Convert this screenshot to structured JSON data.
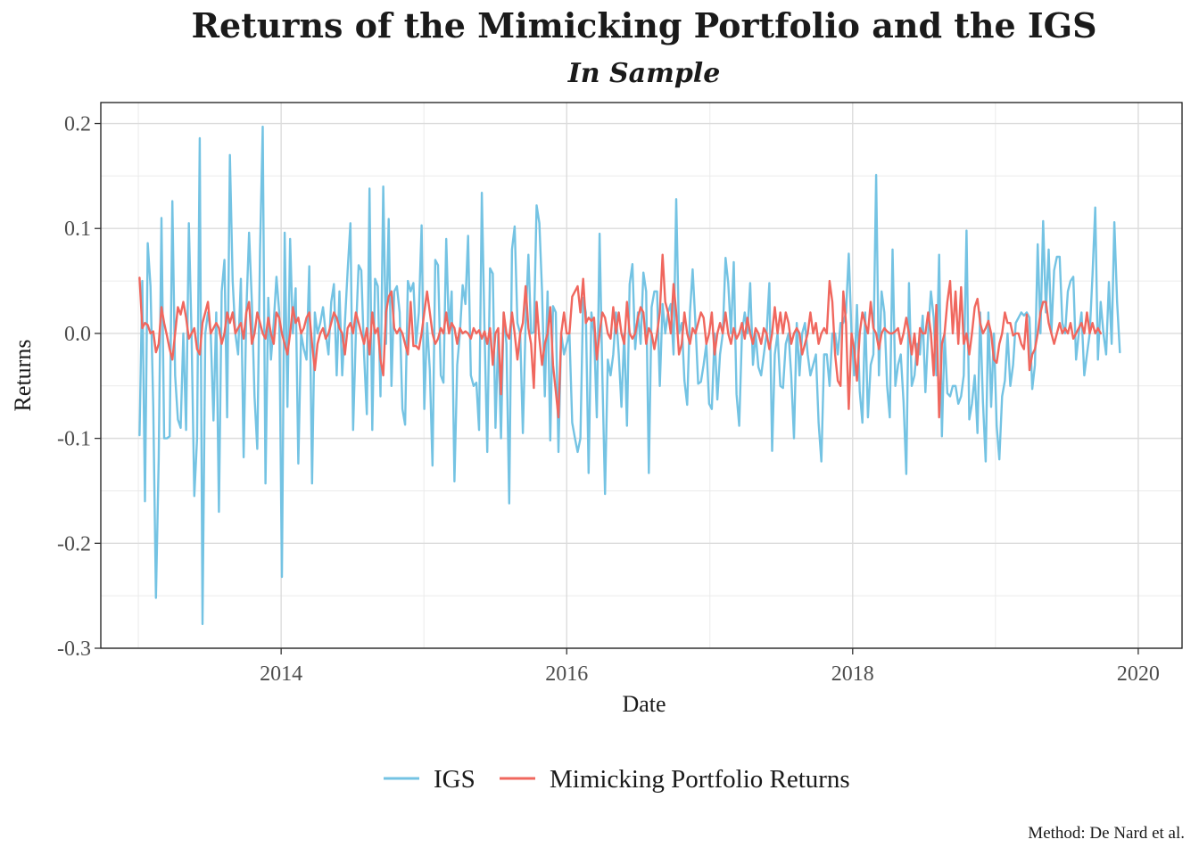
{
  "chart_data": {
    "type": "line",
    "title": "Returns of the Mimicking Portfolio and the IGS",
    "subtitle": "In Sample",
    "xlabel": "Date",
    "ylabel": "Returns",
    "caption": "Method: De Nard et al.",
    "xlim": [
      "2012-09-27",
      "2020-04-22"
    ],
    "ylim": [
      -0.3,
      0.22
    ],
    "x_ticks": [
      "2014",
      "2016",
      "2018",
      "2020"
    ],
    "y_ticks": [
      "0.2",
      "0.1",
      "0.0",
      "-0.1",
      "-0.2",
      "-0.3"
    ],
    "grid": true,
    "legend_position": "bottom",
    "frequency": "weekly",
    "start_date": "2013-01-04",
    "series": [
      {
        "name": "IGS",
        "color": "#74c3e3",
        "values": [
          -0.097,
          0.05,
          -0.16,
          0.086,
          0.045,
          -0.07,
          -0.252,
          -0.12,
          0.11,
          -0.1,
          -0.1,
          -0.098,
          0.126,
          -0.04,
          -0.082,
          -0.09,
          0.0,
          -0.092,
          0.105,
          0.0,
          -0.155,
          -0.1,
          0.186,
          -0.277,
          0.0,
          0.02,
          0.0,
          -0.083,
          0.02,
          -0.17,
          0.04,
          0.07,
          -0.08,
          0.17,
          0.05,
          0.0,
          -0.02,
          0.052,
          -0.118,
          0.02,
          0.096,
          0.03,
          -0.06,
          -0.11,
          0.08,
          0.197,
          -0.143,
          0.034,
          -0.025,
          0.01,
          0.054,
          0.02,
          -0.232,
          0.096,
          -0.07,
          0.09,
          0.0,
          0.043,
          -0.124,
          0.0,
          -0.015,
          -0.025,
          0.064,
          -0.143,
          0.02,
          0.0,
          0.01,
          0.025,
          0.0,
          -0.02,
          0.03,
          0.047,
          -0.04,
          0.04,
          -0.04,
          0.01,
          0.06,
          0.105,
          -0.092,
          0.0,
          0.065,
          0.06,
          -0.02,
          -0.077,
          0.138,
          -0.092,
          0.052,
          0.045,
          -0.06,
          0.14,
          -0.01,
          0.109,
          -0.05,
          0.04,
          0.045,
          0.02,
          -0.072,
          -0.087,
          0.05,
          0.04,
          0.048,
          -0.01,
          0.02,
          0.103,
          -0.072,
          0.01,
          -0.035,
          -0.126,
          0.07,
          0.065,
          -0.04,
          -0.047,
          0.09,
          0.0,
          0.04,
          -0.141,
          -0.03,
          0.0,
          0.046,
          0.028,
          0.093,
          -0.04,
          -0.05,
          -0.047,
          -0.092,
          0.134,
          0.0,
          -0.113,
          0.062,
          0.057,
          -0.09,
          0.0,
          -0.1,
          0.02,
          -0.01,
          -0.162,
          0.08,
          0.102,
          0.01,
          0.0,
          -0.095,
          0.01,
          0.075,
          0.0,
          0.001,
          0.122,
          0.105,
          0.04,
          -0.06,
          0.04,
          -0.102,
          0.026,
          0.02,
          -0.113,
          0.0,
          -0.02,
          -0.01,
          0.0,
          -0.085,
          -0.1,
          -0.113,
          -0.1,
          0.034,
          0.02,
          -0.133,
          0.02,
          0.0,
          -0.08,
          0.095,
          -0.04,
          -0.153,
          -0.025,
          -0.04,
          -0.02,
          0.02,
          -0.02,
          -0.07,
          0.0,
          -0.088,
          0.047,
          0.066,
          -0.015,
          0.02,
          -0.01,
          0.058,
          0.04,
          -0.133,
          0.025,
          0.04,
          0.04,
          -0.05,
          0.028,
          0.0,
          0.02,
          0.028,
          -0.02,
          0.128,
          0.0,
          0.01,
          -0.045,
          -0.068,
          0.02,
          0.061,
          0.01,
          -0.048,
          -0.046,
          -0.03,
          -0.01,
          -0.067,
          -0.072,
          0.0,
          -0.063,
          -0.02,
          0.0,
          0.072,
          0.048,
          0.0,
          0.068,
          -0.058,
          -0.088,
          0.0,
          0.02,
          0.0,
          0.048,
          -0.03,
          0.0,
          -0.032,
          -0.04,
          -0.02,
          0.0,
          0.048,
          -0.112,
          -0.02,
          0.0,
          -0.05,
          -0.052,
          -0.01,
          0.0,
          -0.04,
          -0.1,
          0.01,
          -0.04,
          0.0,
          0.01,
          -0.02,
          -0.04,
          -0.03,
          -0.02,
          -0.085,
          -0.122,
          -0.02,
          -0.02,
          -0.05,
          0.0,
          0.0,
          -0.02,
          0.01,
          0.01,
          0.02,
          0.076,
          0.0,
          -0.04,
          0.027,
          -0.055,
          -0.085,
          0.02,
          -0.08,
          -0.03,
          -0.02,
          0.151,
          -0.04,
          0.04,
          0.02,
          -0.05,
          -0.08,
          0.08,
          -0.05,
          -0.03,
          -0.02,
          -0.065,
          -0.134,
          0.048,
          -0.05,
          -0.04,
          -0.01,
          -0.02,
          0.017,
          -0.056,
          0.0,
          0.04,
          0.015,
          -0.04,
          0.075,
          -0.098,
          0.0,
          -0.057,
          -0.06,
          -0.05,
          -0.05,
          -0.067,
          -0.06,
          -0.04,
          0.098,
          -0.082,
          -0.067,
          -0.04,
          -0.095,
          0.02,
          -0.065,
          -0.122,
          0.02,
          -0.07,
          0.0,
          -0.088,
          -0.12,
          -0.06,
          -0.045,
          0.0,
          -0.05,
          -0.03,
          0.01,
          0.015,
          0.02,
          0.017,
          0.02,
          0.015,
          -0.053,
          -0.03,
          0.085,
          0.0,
          0.107,
          0.02,
          0.08,
          0.0,
          0.06,
          0.073,
          0.073,
          0.01,
          0.0,
          0.04,
          0.05,
          0.054,
          -0.025,
          0.0,
          0.02,
          -0.04,
          -0.02,
          0.0,
          0.055,
          0.12,
          -0.025,
          0.03,
          0.0,
          -0.02,
          0.049,
          -0.01,
          0.106,
          0.03,
          -0.018
        ]
      },
      {
        "name": "Mimicking Portfolio Returns",
        "color": "#f0675e",
        "values": [
          0.053,
          0.005,
          0.01,
          0.008,
          0.0,
          0.002,
          -0.018,
          -0.01,
          0.025,
          0.01,
          -0.002,
          -0.015,
          -0.025,
          0.0,
          0.025,
          0.018,
          0.03,
          0.015,
          -0.005,
          0.0,
          0.005,
          -0.015,
          -0.02,
          0.01,
          0.02,
          0.03,
          0.0,
          0.005,
          0.01,
          0.005,
          -0.01,
          0.0,
          0.02,
          0.01,
          0.02,
          0.0,
          0.005,
          0.01,
          -0.005,
          0.02,
          0.03,
          -0.01,
          0.0,
          0.02,
          0.01,
          0.0,
          -0.005,
          0.015,
          0.0,
          -0.01,
          0.02,
          0.015,
          0.0,
          -0.01,
          -0.02,
          0.0,
          0.025,
          0.01,
          0.015,
          0.0,
          0.005,
          0.015,
          0.02,
          -0.01,
          -0.035,
          -0.01,
          0.0,
          0.005,
          -0.005,
          0.0,
          0.01,
          0.02,
          0.015,
          0.005,
          0.0,
          -0.02,
          0.005,
          0.01,
          0.0,
          0.02,
          0.01,
          0.0,
          -0.01,
          0.005,
          -0.02,
          0.02,
          0.0,
          0.005,
          -0.025,
          -0.04,
          0.02,
          0.035,
          0.04,
          0.005,
          0.0,
          0.005,
          0.0,
          -0.01,
          -0.02,
          0.03,
          -0.012,
          -0.012,
          -0.015,
          0.0,
          0.02,
          0.04,
          0.02,
          0.0,
          -0.01,
          -0.005,
          0.005,
          0.0,
          0.02,
          0.0,
          0.01,
          0.005,
          -0.01,
          0.005,
          0.0,
          0.002,
          0.0,
          -0.005,
          0.005,
          0.0,
          0.003,
          -0.005,
          0.002,
          -0.01,
          0.005,
          -0.03,
          0.0,
          0.005,
          -0.058,
          0.02,
          0.0,
          -0.005,
          0.02,
          0.0,
          -0.025,
          0.0,
          0.01,
          0.045,
          0.005,
          -0.01,
          -0.052,
          0.03,
          -0.005,
          -0.03,
          -0.01,
          0.0,
          0.025,
          -0.03,
          -0.055,
          -0.08,
          0.0,
          0.02,
          0.0,
          0.0,
          0.035,
          0.04,
          0.045,
          0.02,
          0.052,
          0.01,
          0.015,
          0.012,
          0.015,
          -0.025,
          0.0,
          0.02,
          0.015,
          0.0,
          -0.005,
          0.025,
          0.0,
          0.02,
          0.0,
          -0.01,
          0.03,
          0.0,
          -0.005,
          0.0,
          0.015,
          0.025,
          0.02,
          -0.01,
          0.005,
          0.0,
          -0.015,
          0.0,
          0.02,
          0.075,
          0.03,
          0.02,
          0.0,
          0.047,
          0.02,
          -0.02,
          -0.01,
          0.02,
          0.0,
          -0.01,
          0.005,
          0.0,
          0.01,
          0.02,
          0.015,
          -0.01,
          0.0,
          0.02,
          -0.02,
          0.0,
          0.01,
          0.0,
          0.02,
          0.0,
          -0.01,
          0.005,
          -0.005,
          0.0,
          0.01,
          -0.005,
          0.015,
          0.0,
          -0.01,
          0.005,
          0.0,
          -0.01,
          0.005,
          0.0,
          -0.015,
          0.0,
          0.025,
          0.0,
          0.02,
          0.0,
          0.02,
          0.01,
          -0.01,
          0.0,
          0.005,
          0.0,
          -0.02,
          -0.01,
          0.0,
          0.02,
          0.0,
          0.01,
          -0.01,
          0.0,
          0.005,
          0.0,
          0.05,
          0.03,
          -0.02,
          -0.045,
          -0.05,
          0.04,
          0.01,
          -0.072,
          0.0,
          -0.015,
          -0.045,
          0.0,
          0.02,
          0.01,
          0.0,
          0.03,
          0.005,
          0.0,
          -0.015,
          0.0,
          0.005,
          0.002,
          0.0,
          0.0,
          0.002,
          0.005,
          -0.01,
          0.0,
          0.015,
          0.0,
          -0.02,
          0.0,
          -0.03,
          0.005,
          0.0,
          0.0,
          0.02,
          0.0,
          -0.04,
          0.027,
          -0.08,
          -0.01,
          0.0,
          0.03,
          0.05,
          0.0,
          0.04,
          -0.01,
          0.044,
          -0.01,
          0.0,
          -0.02,
          0.0,
          0.025,
          0.033,
          0.01,
          0.0,
          0.005,
          0.012,
          0.0,
          -0.025,
          -0.028,
          -0.01,
          0.0,
          0.02,
          0.01,
          0.01,
          -0.002,
          0.0,
          0.0,
          -0.01,
          -0.015,
          0.018,
          -0.035,
          -0.02,
          -0.015,
          0.0,
          0.02,
          0.03,
          0.03,
          0.01,
          0.0,
          -0.01,
          0.0,
          0.01,
          0.0,
          0.005,
          0.0,
          0.01,
          -0.005,
          0.0,
          0.005,
          0.01,
          0.0,
          0.02,
          0.0,
          0.01,
          0.0,
          0.005,
          0.0
        ]
      }
    ]
  }
}
